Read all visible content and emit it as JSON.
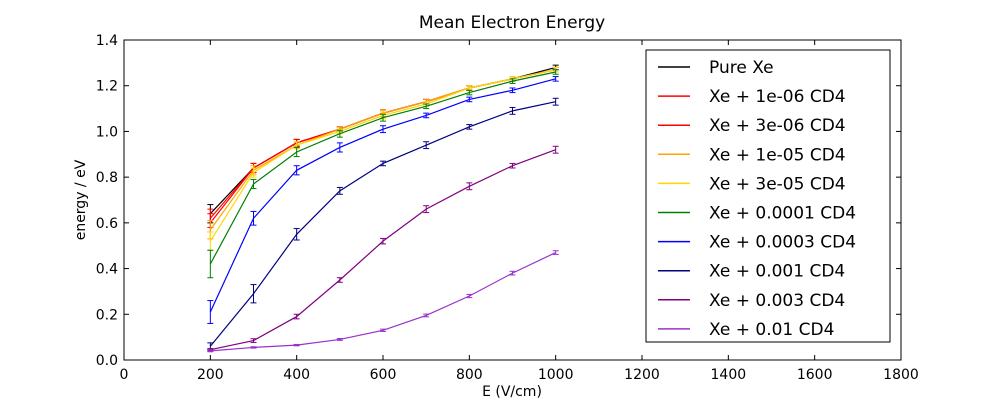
{
  "chart_data": {
    "type": "line",
    "title": "Mean Electron Energy",
    "xlabel": "E (V/cm)",
    "ylabel": "energy / eV",
    "xlim": [
      0,
      1800
    ],
    "ylim": [
      0.0,
      1.4
    ],
    "xticks": [
      "0",
      "200",
      "400",
      "600",
      "800",
      "1000",
      "1200",
      "1400",
      "1600",
      "1800"
    ],
    "yticks": [
      "0.0",
      "0.2",
      "0.4",
      "0.6",
      "0.8",
      "1.0",
      "1.2",
      "1.4"
    ],
    "grid": false,
    "legend_position": "top-right",
    "x": [
      200,
      300,
      400,
      500,
      600,
      700,
      800,
      900,
      1000
    ],
    "series": [
      {
        "name": "Pure Xe",
        "color": "#000000",
        "values": [
          0.64,
          0.84,
          0.95,
          1.01,
          1.08,
          1.13,
          1.19,
          1.23,
          1.28
        ],
        "errors": [
          0.04,
          0.02,
          0.015,
          0.01,
          0.015,
          0.01,
          0.01,
          0.01,
          0.01
        ]
      },
      {
        "name": "Xe + 1e-06 CD4",
        "color": "#ff0000",
        "values": [
          0.62,
          0.84,
          0.95,
          1.01,
          1.08,
          1.13,
          1.19,
          1.23,
          1.27
        ],
        "errors": [
          0.04,
          0.02,
          0.015,
          0.01,
          0.015,
          0.01,
          0.01,
          0.01,
          0.01
        ]
      },
      {
        "name": "Xe + 3e-06 CD4",
        "color": "#ff0000",
        "values": [
          0.6,
          0.84,
          0.95,
          1.01,
          1.08,
          1.13,
          1.19,
          1.23,
          1.27
        ],
        "errors": [
          0.04,
          0.02,
          0.015,
          0.01,
          0.015,
          0.01,
          0.01,
          0.01,
          0.01
        ]
      },
      {
        "name": "Xe + 1e-05 CD4",
        "color": "#ffa500",
        "values": [
          0.57,
          0.83,
          0.94,
          1.01,
          1.08,
          1.13,
          1.19,
          1.23,
          1.27
        ],
        "errors": [
          0.04,
          0.02,
          0.015,
          0.01,
          0.015,
          0.01,
          0.01,
          0.01,
          0.01
        ]
      },
      {
        "name": "Xe + 3e-05 CD4",
        "color": "#ffd700",
        "values": [
          0.52,
          0.82,
          0.94,
          1.0,
          1.07,
          1.12,
          1.19,
          1.23,
          1.27
        ],
        "errors": [
          0.04,
          0.02,
          0.015,
          0.01,
          0.015,
          0.01,
          0.01,
          0.01,
          0.01
        ]
      },
      {
        "name": "Xe + 0.0001 CD4",
        "color": "#008000",
        "values": [
          0.42,
          0.77,
          0.91,
          0.99,
          1.06,
          1.11,
          1.17,
          1.22,
          1.26
        ],
        "errors": [
          0.06,
          0.02,
          0.02,
          0.015,
          0.015,
          0.01,
          0.01,
          0.01,
          0.01
        ]
      },
      {
        "name": "Xe + 0.0003 CD4",
        "color": "#0000ff",
        "values": [
          0.21,
          0.62,
          0.83,
          0.93,
          1.01,
          1.07,
          1.14,
          1.18,
          1.23
        ],
        "errors": [
          0.05,
          0.03,
          0.02,
          0.02,
          0.015,
          0.01,
          0.01,
          0.01,
          0.01
        ]
      },
      {
        "name": "Xe + 0.001 CD4",
        "color": "#000080",
        "values": [
          0.06,
          0.29,
          0.55,
          0.74,
          0.86,
          0.94,
          1.02,
          1.09,
          1.13
        ],
        "errors": [
          0.015,
          0.04,
          0.025,
          0.015,
          0.01,
          0.015,
          0.01,
          0.015,
          0.015
        ]
      },
      {
        "name": "Xe + 0.003 CD4",
        "color": "#800080",
        "values": [
          0.045,
          0.085,
          0.19,
          0.35,
          0.52,
          0.66,
          0.76,
          0.85,
          0.92
        ],
        "errors": [
          0.005,
          0.008,
          0.01,
          0.01,
          0.012,
          0.015,
          0.015,
          0.01,
          0.015
        ]
      },
      {
        "name": "Xe + 0.01 CD4",
        "color": "#9932cc",
        "values": [
          0.04,
          0.055,
          0.065,
          0.09,
          0.13,
          0.195,
          0.28,
          0.38,
          0.47
        ],
        "errors": [
          0.004,
          0.003,
          0.003,
          0.004,
          0.005,
          0.006,
          0.007,
          0.008,
          0.008
        ]
      }
    ]
  }
}
